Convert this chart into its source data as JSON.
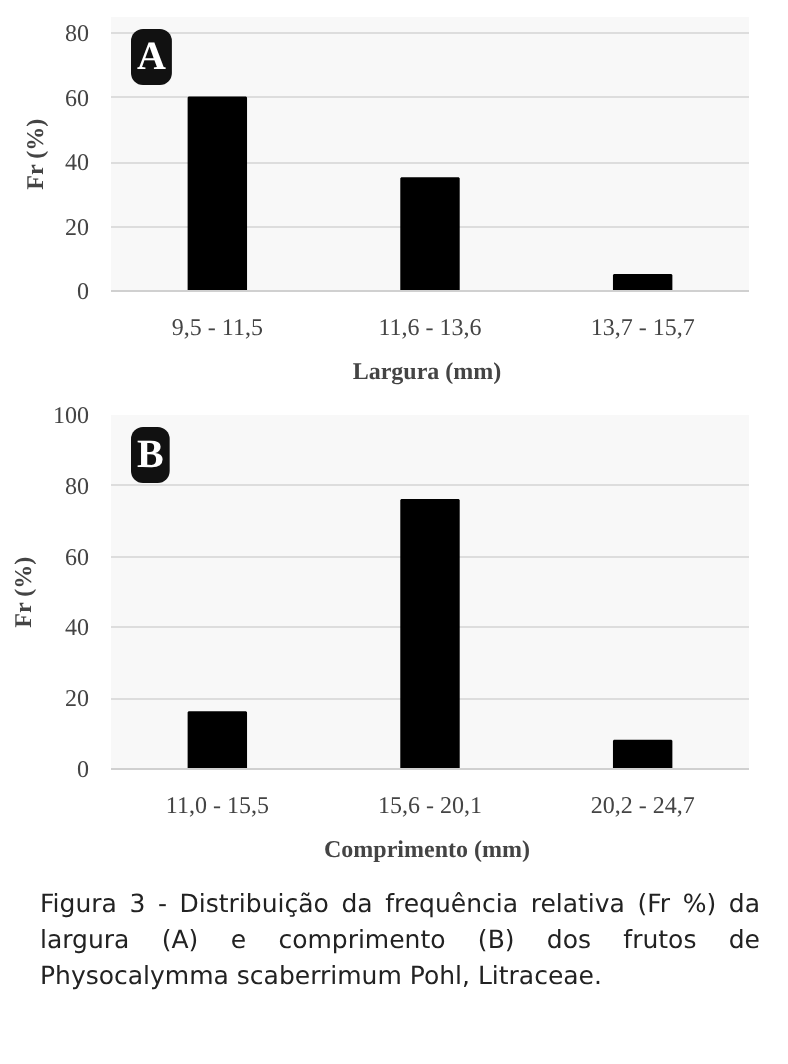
{
  "chart_data": [
    {
      "type": "bar",
      "title": "A",
      "categories": [
        "9,5 - 11,5",
        "11,6 - 13,6",
        "13,7 - 15,7"
      ],
      "values": [
        60,
        35,
        5
      ],
      "color": "#000000",
      "xlabel": "Largura  (mm)",
      "ylabel": "Fr (%)",
      "ylim": [
        0,
        85
      ],
      "yticks": [
        0,
        20,
        40,
        60,
        80
      ],
      "grid": "y"
    },
    {
      "type": "bar",
      "title": "B",
      "categories": [
        "11,0 - 15,5",
        "15,6 - 20,1",
        "20,2 - 24,7"
      ],
      "values": [
        16,
        76,
        8
      ],
      "color": "#000000",
      "xlabel": "Comprimento  (mm)",
      "ylabel": "Fr (%)",
      "ylim": [
        0,
        100
      ],
      "yticks": [
        0,
        20,
        40,
        60,
        80,
        100
      ],
      "grid": "y",
      "annotations": [
        "Figura 3 - Distribuição da frequência relativa (Fr %) da largura (A) e comprimento (B) dos frutos de Physocalymma scaberrimum Pohl, Litraceae."
      ]
    }
  ]
}
